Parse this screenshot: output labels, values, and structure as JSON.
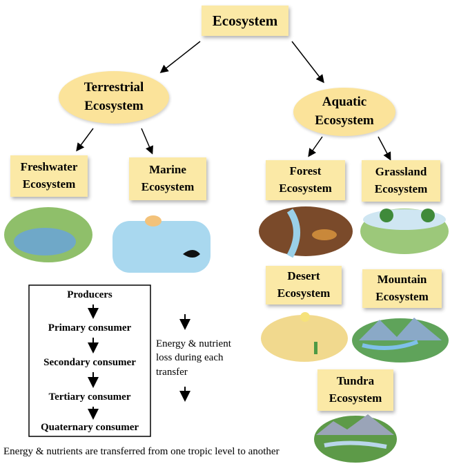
{
  "root": {
    "label": "Ecosystem"
  },
  "branches": [
    {
      "label": "Terrestrial Ecosystem",
      "children": [
        {
          "label": "Freshwater Ecosystem"
        },
        {
          "label": "Marine Ecosystem"
        }
      ]
    },
    {
      "label": "Aquatic Ecosystem",
      "children": [
        {
          "label": "Forest Ecosystem"
        },
        {
          "label": "Grassland Ecosystem"
        },
        {
          "label": "Desert Ecosystem"
        },
        {
          "label": "Mountain Ecosystem"
        },
        {
          "label": "Tundra Ecosystem"
        }
      ]
    }
  ],
  "food_chain": {
    "levels": [
      "Producers",
      "Primary consumer",
      "Secondary consumer",
      "Tertiary consumer",
      "Quaternary consumer"
    ]
  },
  "side_note": "Energy & nutrient loss during each transfer",
  "caption": "Energy & nutrients are transferred from one tropic level to another"
}
